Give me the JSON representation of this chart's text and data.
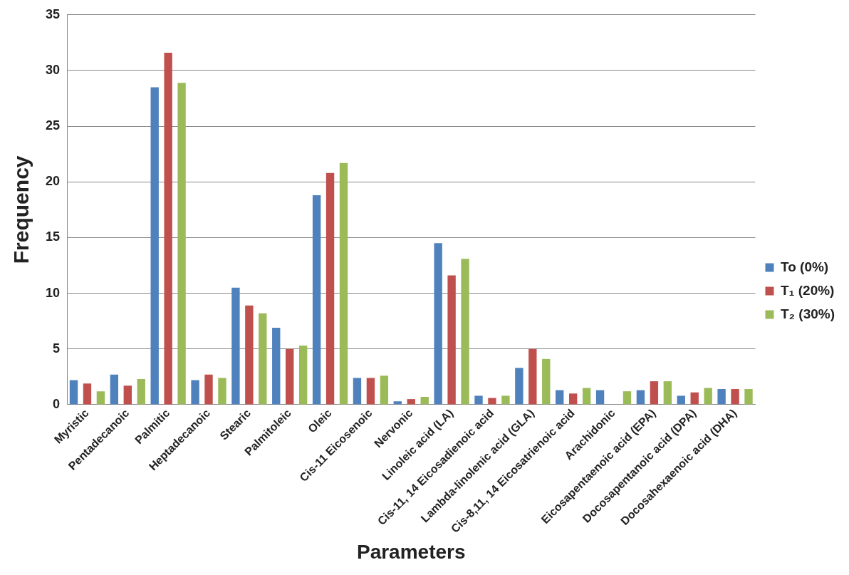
{
  "chart_data": {
    "type": "bar",
    "xlabel": "Parameters",
    "ylabel": "Frequency",
    "categories": [
      "Myristic",
      "Pentadecanoic",
      "Palmitic",
      "Heptadecanoic",
      "Stearic",
      "Palmitoleic",
      "Oleic",
      "Cis-11 Eicosenoic",
      "Nervonic",
      "Linoleic acid (LA)",
      "Cis-11, 14 Eicosadienoic acid",
      "Lambda-linolenic acid (GLA)",
      "Cis-8,11, 14 Eicosatrienoic acid",
      "Arachidonic",
      "Eicosapentaenoic acid (EPA)",
      "Docosapentanoic acid (DPA)",
      "Docosahexaenoic acid (DHA)"
    ],
    "series": [
      {
        "name": "To (0%)",
        "color": "#4f81bd",
        "values": [
          2.2,
          2.7,
          28.5,
          2.2,
          10.5,
          6.9,
          18.8,
          2.4,
          0.3,
          14.5,
          0.8,
          3.3,
          1.3,
          1.3,
          1.3,
          0.8,
          1.4
        ]
      },
      {
        "name": "T₁ (20%)",
        "color": "#c0504d",
        "values": [
          1.9,
          1.7,
          31.6,
          2.7,
          8.9,
          5.0,
          20.8,
          2.4,
          0.5,
          11.6,
          0.6,
          5.0,
          1.0,
          null,
          2.1,
          1.1,
          1.4
        ]
      },
      {
        "name": "T₂ (30%)",
        "color": "#9bbb59",
        "values": [
          1.2,
          2.3,
          28.9,
          2.4,
          8.2,
          5.3,
          21.7,
          2.6,
          0.7,
          13.1,
          0.8,
          4.1,
          1.5,
          1.2,
          2.1,
          1.5,
          1.4
        ]
      }
    ],
    "ylim": [
      0,
      35
    ],
    "yticks": [
      0,
      5,
      10,
      15,
      20,
      25,
      30,
      35
    ],
    "grid": "y",
    "legend": "right"
  }
}
